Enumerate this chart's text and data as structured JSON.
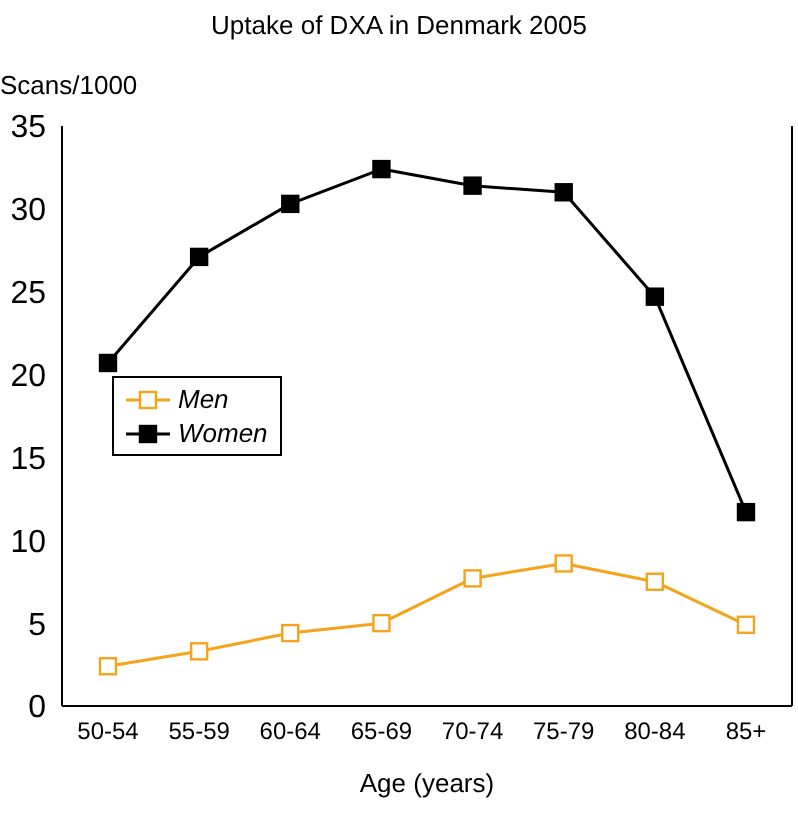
{
  "chart_data": {
    "type": "line",
    "title": "Uptake of DXA in Denmark 2005",
    "xlabel": "Age (years)",
    "ylabel": "Scans/1000",
    "categories": [
      "50-54",
      "55-59",
      "60-64",
      "65-69",
      "70-74",
      "75-79",
      "80-84",
      "85+"
    ],
    "series": [
      {
        "name": "Men",
        "color": "#f5a31a",
        "values": [
          2.4,
          3.3,
          4.4,
          5.0,
          7.7,
          8.6,
          7.5,
          4.9
        ]
      },
      {
        "name": "Women",
        "color": "#000000",
        "values": [
          20.7,
          27.1,
          30.3,
          32.4,
          31.4,
          31.0,
          24.7,
          11.7
        ]
      }
    ],
    "ylim": [
      0,
      35
    ],
    "yticks": [
      0,
      5,
      10,
      15,
      20,
      25,
      30,
      35
    ],
    "grid": false,
    "legend": "left",
    "marker": "square",
    "line_style": "solid"
  }
}
